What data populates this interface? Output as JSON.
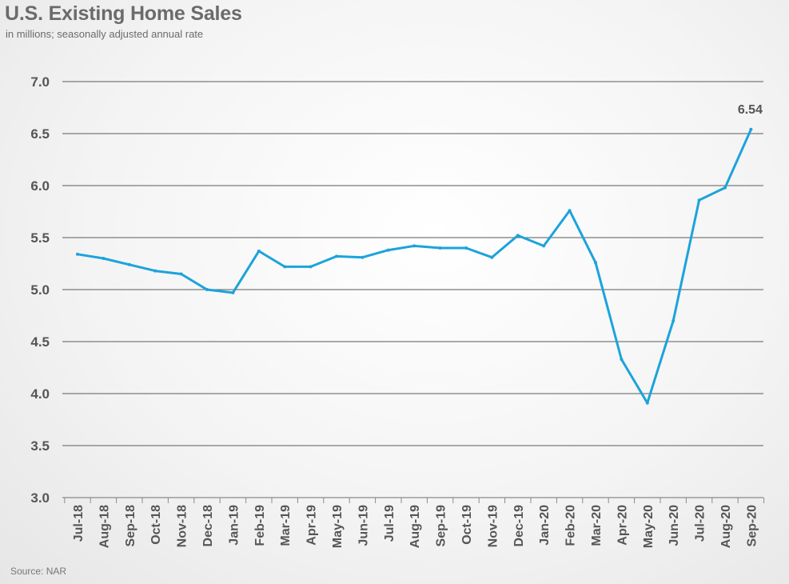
{
  "chart_data": {
    "type": "line",
    "title": "U.S. Existing Home Sales",
    "subtitle": "in millions; seasonally adjusted annual rate",
    "source": "Source: NAR",
    "ylim": [
      3.0,
      7.0
    ],
    "yticks": [
      "3.0",
      "3.5",
      "4.0",
      "4.5",
      "5.0",
      "5.5",
      "6.0",
      "6.5",
      "7.0"
    ],
    "grid": true,
    "line_color": "#1ca3dc",
    "categories": [
      "Jul-18",
      "Aug-18",
      "Sep-18",
      "Oct-18",
      "Nov-18",
      "Dec-18",
      "Jan-19",
      "Feb-19",
      "Mar-19",
      "Apr-19",
      "May-19",
      "Jun-19",
      "Jul-19",
      "Aug-19",
      "Sep-19",
      "Oct-19",
      "Nov-19",
      "Dec-19",
      "Jan-20",
      "Feb-20",
      "Mar-20",
      "Apr-20",
      "May-20",
      "Jun-20",
      "Jul-20",
      "Aug-20",
      "Sep-20"
    ],
    "series": [
      {
        "values": [
          5.34,
          5.3,
          5.24,
          5.18,
          5.15,
          5.0,
          4.97,
          5.37,
          5.22,
          5.22,
          5.32,
          5.31,
          5.38,
          5.42,
          5.4,
          5.4,
          5.31,
          5.52,
          5.42,
          5.76,
          5.26,
          4.33,
          3.91,
          4.7,
          5.86,
          5.98,
          6.54
        ]
      }
    ],
    "annotations": [
      {
        "index": 26,
        "text": "6.54"
      }
    ]
  }
}
